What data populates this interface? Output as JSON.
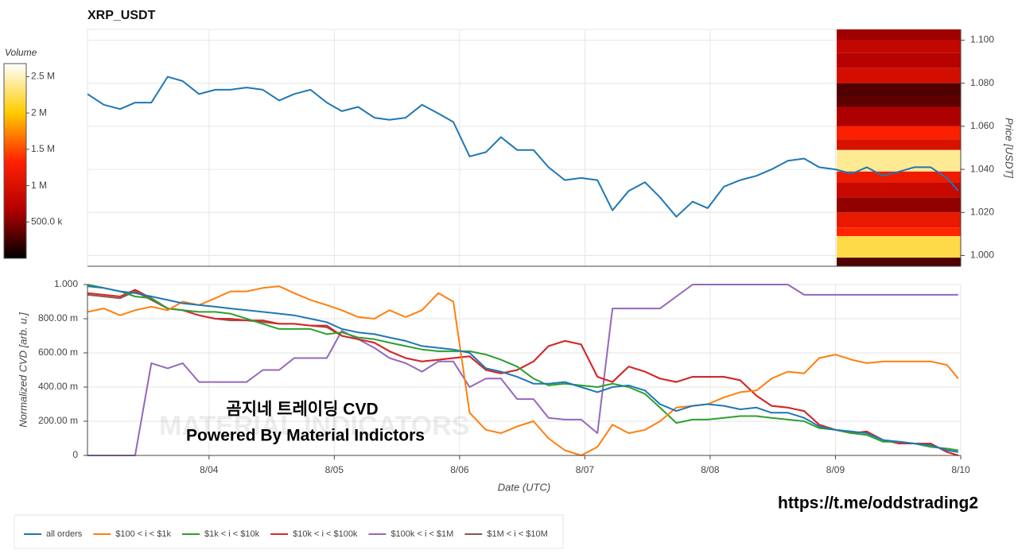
{
  "chart_data": [
    {
      "type": "line",
      "title": "XRP_USDT",
      "ylabel": "Price [USDT]",
      "color": "#1f77b4",
      "grid": true,
      "x": [
        3.03,
        3.16,
        3.29,
        3.41,
        3.54,
        3.67,
        3.79,
        3.92,
        4.05,
        4.17,
        4.3,
        4.43,
        4.56,
        4.68,
        4.81,
        4.94,
        5.06,
        5.19,
        5.32,
        5.44,
        5.57,
        5.7,
        5.83,
        5.95,
        6.08,
        6.21,
        6.33,
        6.46,
        6.59,
        6.71,
        6.84,
        6.97,
        7.1,
        7.22,
        7.35,
        7.48,
        7.6,
        7.73,
        7.86,
        7.98,
        8.11,
        8.24,
        8.37,
        8.49,
        8.62,
        8.75,
        8.87,
        9.0,
        9.13,
        9.25,
        9.38,
        9.51,
        9.63,
        9.76,
        9.89,
        9.98
      ],
      "values": [
        1.075,
        1.07,
        1.068,
        1.071,
        1.071,
        1.083,
        1.081,
        1.075,
        1.077,
        1.077,
        1.078,
        1.077,
        1.072,
        1.075,
        1.077,
        1.071,
        1.067,
        1.069,
        1.064,
        1.063,
        1.064,
        1.07,
        1.066,
        1.062,
        1.046,
        1.048,
        1.055,
        1.049,
        1.049,
        1.041,
        1.035,
        1.036,
        1.035,
        1.021,
        1.03,
        1.034,
        1.027,
        1.018,
        1.025,
        1.022,
        1.032,
        1.035,
        1.037,
        1.04,
        1.044,
        1.045,
        1.041,
        1.04,
        1.038,
        1.041,
        1.037,
        1.039,
        1.041,
        1.041,
        1.036,
        1.03
      ],
      "xlim": [
        3.03,
        10
      ],
      "xticks": [
        4,
        5,
        6,
        7,
        8,
        9
      ],
      "ylim": [
        0.995,
        1.105
      ],
      "yticks": [
        {
          "value": 1.0,
          "label": "1.000"
        },
        {
          "value": 1.02,
          "label": "1.020"
        },
        {
          "value": 1.04,
          "label": "1.040"
        },
        {
          "value": 1.06,
          "label": "1.060"
        },
        {
          "value": 1.08,
          "label": "1.080"
        },
        {
          "value": 1.1,
          "label": "1.100"
        }
      ],
      "heatmap": {
        "xbins": [
          9.01,
          10
        ],
        "ybins": [
          1.105,
          1.1,
          1.094,
          1.087,
          1.08,
          1.074,
          1.069,
          1.06,
          1.054,
          1.049,
          1.039,
          1.034,
          1.027,
          1.02,
          1.013,
          1.009,
          0.999,
          0.995
        ],
        "values": [
          600000,
          800000,
          700000,
          950000,
          300000,
          350000,
          650000,
          1300000,
          1000000,
          2400000,
          1200000,
          850000,
          550000,
          1150000,
          1350000,
          2200000,
          300000
        ],
        "colormap": [
          "#000000",
          "#b30000",
          "#ff2200",
          "#ffcc00",
          "#ffffff"
        ],
        "colorbar": {
          "title": "Volume",
          "lim": [
            0,
            2680000
          ],
          "ticks": [
            {
              "value": 500000,
              "label": "500.0 k"
            },
            {
              "value": 1000000,
              "label": "1 M"
            },
            {
              "value": 1500000,
              "label": "1.5 M"
            },
            {
              "value": 2000000,
              "label": "2 M"
            },
            {
              "value": 2500000,
              "label": "2.5 M"
            }
          ]
        }
      }
    },
    {
      "type": "line",
      "xlabel": "Date (UTC)",
      "ylabel": "Normalized CVD [arb. u.]",
      "grid": true,
      "x": [
        3.03,
        3.16,
        3.29,
        3.41,
        3.54,
        3.67,
        3.79,
        3.92,
        4.05,
        4.17,
        4.3,
        4.43,
        4.56,
        4.68,
        4.81,
        4.94,
        5.06,
        5.19,
        5.32,
        5.44,
        5.57,
        5.7,
        5.83,
        5.95,
        6.08,
        6.21,
        6.33,
        6.46,
        6.59,
        6.71,
        6.84,
        6.97,
        7.1,
        7.22,
        7.35,
        7.48,
        7.6,
        7.73,
        7.86,
        7.98,
        8.11,
        8.24,
        8.37,
        8.49,
        8.62,
        8.75,
        8.87,
        9.0,
        9.13,
        9.25,
        9.38,
        9.51,
        9.63,
        9.76,
        9.89,
        9.98
      ],
      "series": [
        {
          "name": "all orders",
          "color": "#1f77b4",
          "values": [
            0.99,
            0.98,
            0.96,
            0.95,
            0.93,
            0.91,
            0.89,
            0.88,
            0.87,
            0.86,
            0.85,
            0.84,
            0.83,
            0.82,
            0.8,
            0.78,
            0.74,
            0.72,
            0.71,
            0.69,
            0.67,
            0.64,
            0.63,
            0.62,
            0.6,
            0.51,
            0.49,
            0.46,
            0.42,
            0.42,
            0.43,
            0.4,
            0.37,
            0.4,
            0.41,
            0.38,
            0.3,
            0.26,
            0.29,
            0.3,
            0.29,
            0.27,
            0.28,
            0.25,
            0.25,
            0.22,
            0.17,
            0.15,
            0.14,
            0.13,
            0.09,
            0.08,
            0.07,
            0.06,
            0.03,
            0.02
          ]
        },
        {
          "name": "$100 < i < $1k",
          "color": "#ff7f0e",
          "values": [
            0.84,
            0.86,
            0.82,
            0.85,
            0.87,
            0.85,
            0.9,
            0.88,
            0.92,
            0.96,
            0.96,
            0.98,
            0.99,
            0.95,
            0.91,
            0.88,
            0.85,
            0.81,
            0.8,
            0.85,
            0.81,
            0.85,
            0.95,
            0.9,
            0.25,
            0.15,
            0.13,
            0.17,
            0.2,
            0.1,
            0.03,
            0,
            0.05,
            0.18,
            0.13,
            0.15,
            0.2,
            0.28,
            0.29,
            0.3,
            0.34,
            0.37,
            0.38,
            0.45,
            0.49,
            0.48,
            0.57,
            0.59,
            0.56,
            0.54,
            0.55,
            0.55,
            0.55,
            0.55,
            0.53,
            0.45
          ]
        },
        {
          "name": "$1k < i < $10k",
          "color": "#2ca02c",
          "values": [
            1.0,
            0.98,
            0.96,
            0.93,
            0.92,
            0.86,
            0.85,
            0.84,
            0.84,
            0.83,
            0.8,
            0.77,
            0.74,
            0.74,
            0.74,
            0.71,
            0.72,
            0.69,
            0.68,
            0.66,
            0.64,
            0.62,
            0.61,
            0.61,
            0.61,
            0.59,
            0.56,
            0.52,
            0.45,
            0.41,
            0.42,
            0.41,
            0.4,
            0.42,
            0.4,
            0.36,
            0.28,
            0.19,
            0.21,
            0.21,
            0.22,
            0.23,
            0.23,
            0.22,
            0.21,
            0.2,
            0.16,
            0.15,
            0.13,
            0.12,
            0.08,
            0.08,
            0.07,
            0.05,
            0.04,
            0.03
          ]
        },
        {
          "name": "$10k < i < $100k",
          "color": "#d62728",
          "values": [
            0.95,
            0.94,
            0.93,
            0.97,
            0.92,
            0.86,
            0.85,
            0.82,
            0.8,
            0.8,
            0.79,
            0.79,
            0.77,
            0.77,
            0.76,
            0.76,
            0.7,
            0.68,
            0.66,
            0.61,
            0.57,
            0.55,
            0.56,
            0.57,
            0.58,
            0.5,
            0.48,
            0.5,
            0.55,
            0.64,
            0.67,
            0.65,
            0.46,
            0.43,
            0.52,
            0.49,
            0.45,
            0.43,
            0.46,
            0.46,
            0.46,
            0.44,
            0.35,
            0.29,
            0.28,
            0.26,
            0.18,
            0.15,
            0.13,
            0.14,
            0.09,
            0.07,
            0.07,
            0.07,
            0.02,
            0
          ]
        },
        {
          "name": "$100k < i < $1M",
          "color": "#9467bd",
          "values": [
            0,
            0,
            0,
            0,
            0.54,
            0.51,
            0.54,
            0.43,
            0.43,
            0.43,
            0.43,
            0.5,
            0.5,
            0.57,
            0.57,
            0.57,
            0.73,
            0.68,
            0.63,
            0.57,
            0.54,
            0.49,
            0.55,
            0.55,
            0.4,
            0.45,
            0.45,
            0.33,
            0.33,
            0.22,
            0.21,
            0.21,
            0.13,
            0.86,
            0.86,
            0.86,
            0.86,
            0.93,
            1.0,
            1.0,
            1.0,
            1.0,
            1.0,
            1.0,
            1.0,
            0.94,
            0.94,
            0.94,
            0.94,
            0.94,
            0.94,
            0.94,
            0.94,
            0.94,
            0.94,
            0.94
          ]
        },
        {
          "name": "$1M < i < $10M",
          "color": "#8c564b",
          "values": [
            0.94,
            0.93,
            0.92,
            0.96,
            0.91,
            0.86,
            0.85,
            0.82,
            0.8,
            0.79,
            0.79,
            0.78,
            0.77,
            0.77,
            0.76,
            0.75,
            0.7,
            0.68,
            0.66,
            0.61,
            0.57,
            0.55,
            0.56,
            0.57,
            0.58,
            0.5,
            0.48,
            0.5,
            0.55,
            0.64,
            0.67,
            0.65,
            0.46,
            0.43,
            0.52,
            0.49,
            0.45,
            0.43,
            0.46,
            0.46,
            0.46,
            0.44,
            0.35,
            0.29,
            0.28,
            0.26,
            0.18,
            0.15,
            0.13,
            0.14,
            0.09,
            0.07,
            0.07,
            0.07,
            0.02,
            0
          ]
        }
      ],
      "xlim": [
        3.03,
        10
      ],
      "xticks": [
        {
          "value": 4,
          "label": "8/04"
        },
        {
          "value": 5,
          "label": "8/05"
        },
        {
          "value": 6,
          "label": "8/06"
        },
        {
          "value": 7,
          "label": "8/07"
        },
        {
          "value": 8,
          "label": "8/08"
        },
        {
          "value": 9,
          "label": "8/09"
        },
        {
          "value": 10,
          "label": "8/10"
        }
      ],
      "ylim": [
        0,
        1
      ],
      "yticks": [
        0,
        {
          "value": 0.2,
          "label": "200.00 m"
        },
        {
          "value": 0.4,
          "label": "400.00 m"
        },
        {
          "value": 0.6,
          "label": "600.00 m"
        },
        {
          "value": 0.8,
          "label": "800.00 m"
        },
        {
          "value": 1,
          "label": "1.000"
        }
      ],
      "annotations": [
        "MATERIAL INDICATORS",
        "곰지네 트레이딩 CVD",
        "Powered By Material Indictors",
        "https://t.me/oddstrading2"
      ]
    }
  ]
}
